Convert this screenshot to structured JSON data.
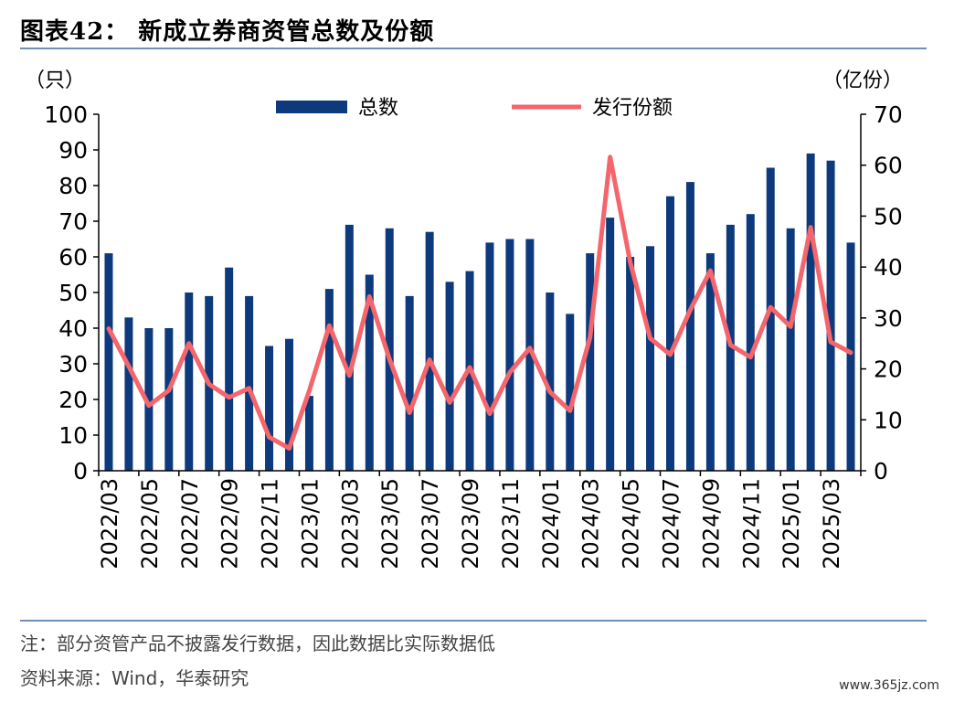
{
  "figure_title": "图表42： 新成立券商资管总数及份额",
  "chart_data": {
    "type": "bar",
    "categories": [
      "2022/03",
      "2022/04",
      "2022/05",
      "2022/06",
      "2022/07",
      "2022/08",
      "2022/09",
      "2022/10",
      "2022/11",
      "2022/12",
      "2023/01",
      "2023/02",
      "2023/03",
      "2023/04",
      "2023/05",
      "2023/06",
      "2023/07",
      "2023/08",
      "2023/09",
      "2023/10",
      "2023/11",
      "2023/12",
      "2024/01",
      "2024/02",
      "2024/03",
      "2024/04",
      "2024/05",
      "2024/06",
      "2024/07",
      "2024/08",
      "2024/09",
      "2024/10",
      "2024/11",
      "2024/12",
      "2025/01",
      "2025/02",
      "2025/03",
      "2025/04"
    ],
    "x_tick_labels": [
      "2022/03",
      "2022/05",
      "2022/07",
      "2022/09",
      "2022/11",
      "2023/01",
      "2023/03",
      "2023/05",
      "2023/07",
      "2023/09",
      "2023/11",
      "2024/01",
      "2024/03",
      "2024/05",
      "2024/07",
      "2024/09",
      "2024/11",
      "2025/01",
      "2025/03"
    ],
    "series": [
      {
        "name": "总数",
        "type": "bar",
        "axis": "left",
        "color": "#0d3a7d",
        "values": [
          61,
          43,
          40,
          40,
          50,
          49,
          57,
          49,
          35,
          37,
          21,
          51,
          69,
          55,
          68,
          49,
          67,
          53,
          56,
          64,
          65,
          65,
          50,
          44,
          61,
          71,
          60,
          63,
          77,
          81,
          61,
          69,
          72,
          85,
          68,
          89,
          87,
          64
        ]
      },
      {
        "name": "发行份额",
        "type": "line",
        "axis": "right",
        "color": "#f4656c",
        "values": [
          27.9,
          20.5,
          12.8,
          15.8,
          25.0,
          17.0,
          14.4,
          16.2,
          6.6,
          4.4,
          15.7,
          28.5,
          18.7,
          34.2,
          21.9,
          11.4,
          21.8,
          13.4,
          20.3,
          11.2,
          19.3,
          24.1,
          15.5,
          11.8,
          26.2,
          61.6,
          41.0,
          26.0,
          22.8,
          31.6,
          39.3,
          24.7,
          22.3,
          32.1,
          28.3,
          47.8,
          25.3,
          23.2
        ]
      }
    ],
    "left_axis": {
      "unit_label": "（只）",
      "ylim": [
        0,
        100
      ],
      "ticks": [
        0,
        10,
        20,
        30,
        40,
        50,
        60,
        70,
        80,
        90,
        100
      ]
    },
    "right_axis": {
      "unit_label": "（亿份）",
      "ylim": [
        0,
        70
      ],
      "ticks": [
        0,
        10,
        20,
        30,
        40,
        50,
        60,
        70
      ]
    },
    "legend_placement": "top-center",
    "grid": false
  },
  "notes": {
    "note": "注：部分资管产品不披露发行数据，因此数据比实际数据低",
    "source": "资料来源：Wind，华泰研究"
  },
  "watermark": "www.365jz.com"
}
